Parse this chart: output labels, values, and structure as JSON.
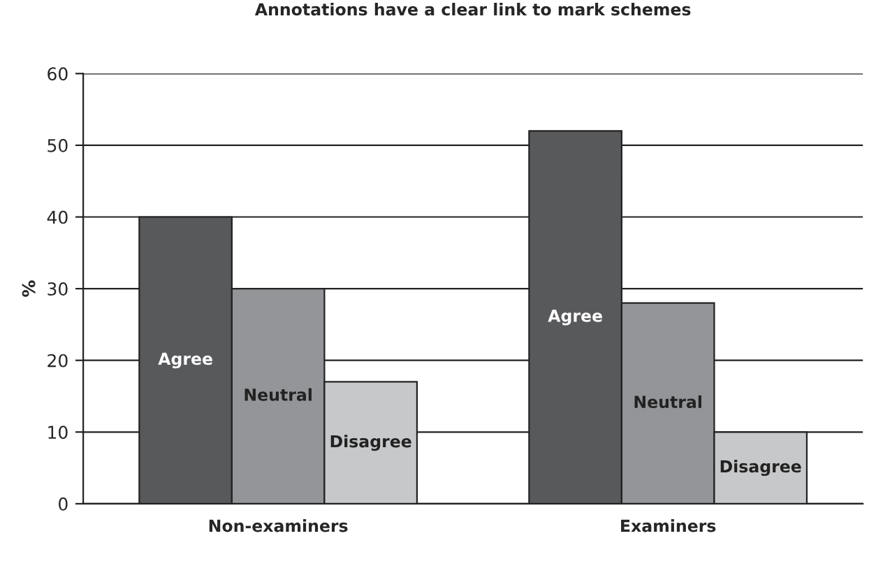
{
  "chart_data": {
    "type": "bar",
    "title": "Annotations have a clear link to mark schemes",
    "ylabel": "%",
    "categories": [
      "Non-examiners",
      "Examiners"
    ],
    "series": [
      {
        "name": "Agree",
        "color": "#58595b",
        "values": [
          40,
          52
        ]
      },
      {
        "name": "Neutral",
        "color": "#939598",
        "values": [
          30,
          28
        ]
      },
      {
        "name": "Disagree",
        "color": "#c7c8ca",
        "values": [
          17,
          10
        ]
      }
    ],
    "ylim": [
      0,
      60
    ],
    "yticks": [
      0,
      10,
      20,
      30,
      40,
      50,
      60
    ],
    "grid": "y",
    "legend": false
  }
}
